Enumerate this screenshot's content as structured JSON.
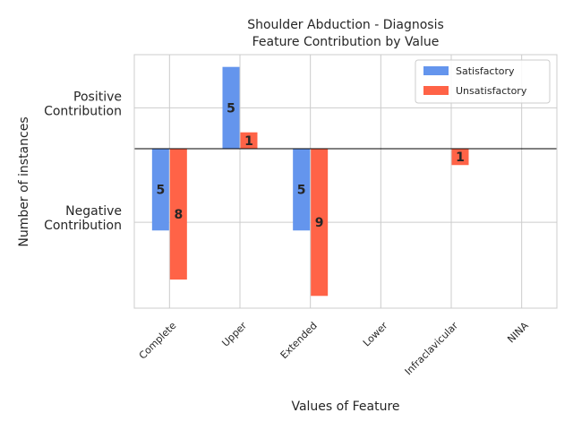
{
  "chart_data": {
    "type": "bar",
    "title_lines": [
      "Shoulder Abduction - Diagnosis",
      "Feature Contribution by Value"
    ],
    "xlabel": "Values of Feature",
    "ylabel": "Number of instances",
    "ytick_labels": [
      {
        "lines": [
          "Positive",
          "Contribution"
        ],
        "value": 5
      },
      {
        "lines": [
          "Negative",
          "Contribution"
        ],
        "value": -9
      }
    ],
    "categories": [
      "Complete",
      "Upper",
      "Extended",
      "Lower",
      "Infraclavicular",
      "NINA"
    ],
    "series": [
      {
        "name": "Satisfactory",
        "color": "#6495ED",
        "values": [
          -10,
          10,
          -10,
          0,
          0,
          0
        ],
        "labels": [
          "5",
          "5",
          "5",
          "",
          "",
          ""
        ]
      },
      {
        "name": "Unsatisfactory",
        "color": "#FF6347",
        "values": [
          -16,
          2,
          -18,
          0,
          -2,
          0
        ],
        "labels": [
          "8",
          "1",
          "9",
          "",
          "1",
          ""
        ]
      }
    ],
    "ylim": [
      -19.5,
      11.5
    ],
    "grid": true,
    "legend_position": "top-right"
  }
}
